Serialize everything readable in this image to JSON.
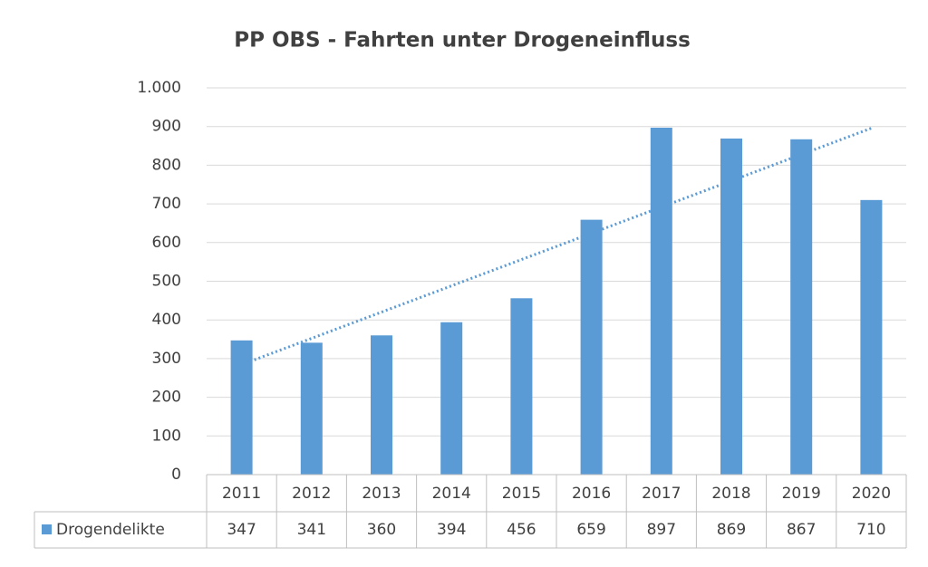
{
  "chart_data": {
    "type": "bar",
    "title": "PP OBS - Fahrten unter Drogeneinfluss",
    "categories": [
      "2011",
      "2012",
      "2013",
      "2014",
      "2015",
      "2016",
      "2017",
      "2018",
      "2019",
      "2020"
    ],
    "series": [
      {
        "name": "Drogendelikte",
        "color": "#5b9bd5",
        "values": [
          347,
          341,
          360,
          394,
          456,
          659,
          897,
          869,
          867,
          710
        ]
      }
    ],
    "ylim": [
      0,
      1000
    ],
    "yticks": [
      0,
      100,
      200,
      300,
      400,
      500,
      600,
      700,
      800,
      900,
      {
        "value": 1000,
        "label": "1.000"
      }
    ],
    "grid": true,
    "trendline": "linear",
    "data_table": true
  }
}
